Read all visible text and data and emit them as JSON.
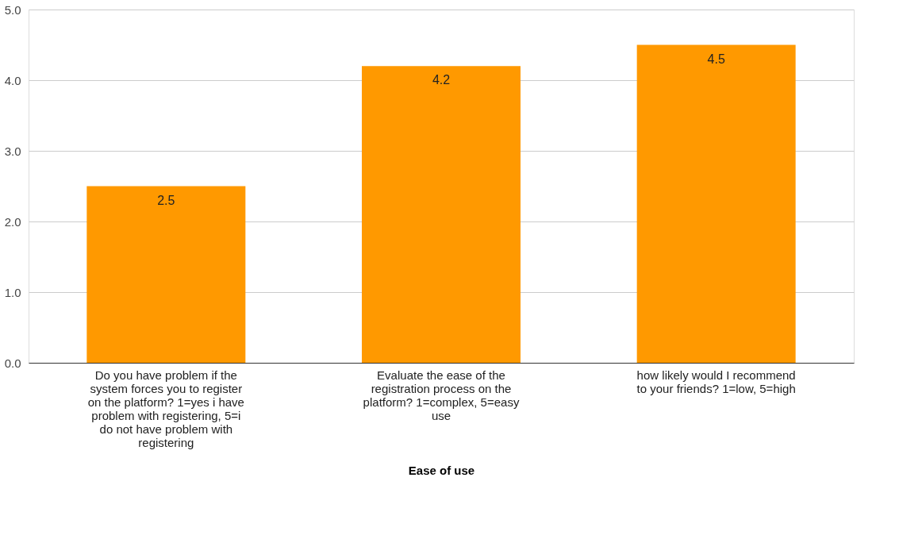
{
  "chart_data": {
    "type": "bar",
    "xlabel": "Ease of use",
    "categories": [
      "Do you have problem if the system forces you to register on the platform? 1=yes i have problem with registering, 5=i do not have problem with registering",
      "Evaluate the ease of the registration process on the platform? 1=complex, 5=easy use",
      "how likely would I recommend to your friends? 1=low, 5=high"
    ],
    "values": [
      2.5,
      4.2,
      4.5
    ],
    "color": "#ff9900",
    "data_labels": true,
    "ylim": [
      0,
      5
    ],
    "yticks": [
      {
        "value": 0,
        "label": "0.0"
      },
      {
        "value": 1,
        "label": "1.0"
      },
      {
        "value": 2,
        "label": "2.0"
      },
      {
        "value": 3,
        "label": "3.0"
      },
      {
        "value": 4,
        "label": "4.0"
      },
      {
        "value": 5,
        "label": "5.0"
      }
    ],
    "grid": "y"
  }
}
